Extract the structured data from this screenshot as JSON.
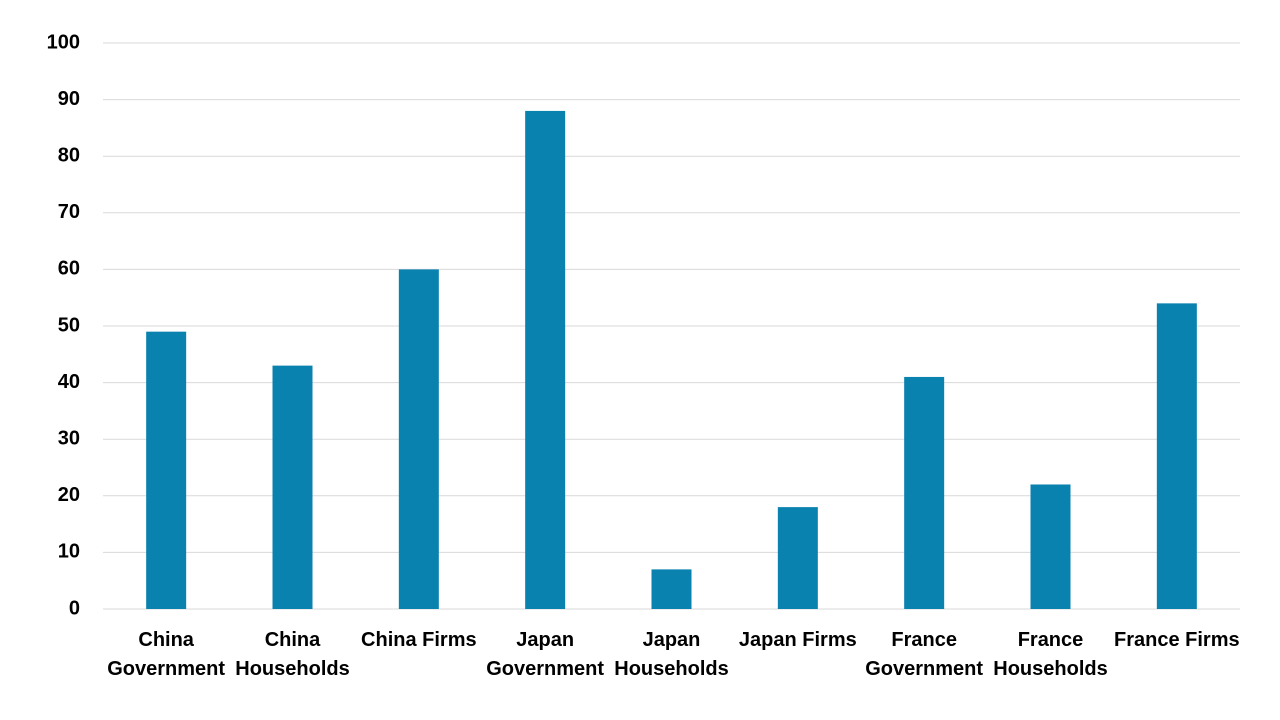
{
  "chart_data": {
    "type": "bar",
    "categories": [
      "China Government",
      "China Households",
      "China Firms",
      "Japan Government",
      "Japan Households",
      "Japan Firms",
      "France Government",
      "France Households",
      "France Firms"
    ],
    "values": [
      49,
      43,
      60,
      88,
      7,
      18,
      41,
      22,
      54
    ],
    "color": "#0a82b0",
    "ylim": [
      0,
      100
    ],
    "yticks": [
      0,
      10,
      20,
      30,
      40,
      50,
      60,
      70,
      80,
      90,
      100
    ],
    "grid": true
  }
}
